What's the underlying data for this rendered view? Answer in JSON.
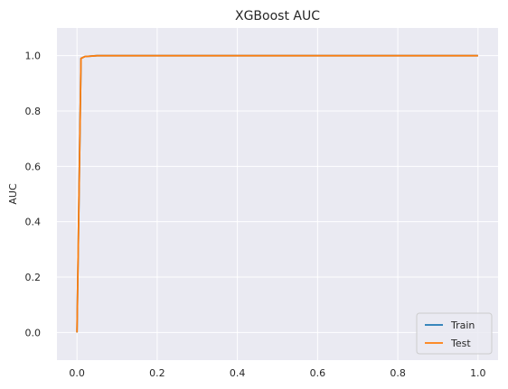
{
  "chart_data": {
    "type": "line",
    "title": "XGBoost AUC",
    "xlabel": "",
    "ylabel": "AUC",
    "xlim": [
      -0.05,
      1.05
    ],
    "ylim": [
      -0.1,
      1.1
    ],
    "xticks": [
      0.0,
      0.2,
      0.4,
      0.6,
      0.8,
      1.0
    ],
    "xtick_labels": [
      "0.0",
      "0.2",
      "0.4",
      "0.6",
      "0.8",
      "1.0"
    ],
    "yticks": [
      0.0,
      0.2,
      0.4,
      0.6,
      0.8,
      1.0
    ],
    "ytick_labels": [
      "0.0",
      "0.2",
      "0.4",
      "0.6",
      "0.8",
      "1.0"
    ],
    "grid": true,
    "legend_position": "bottom-right",
    "background": "#eaeaf2",
    "series": [
      {
        "name": "Train",
        "color": "#1f77b4",
        "x": [
          0.0,
          0.01,
          0.02,
          0.05,
          1.0
        ],
        "y": [
          0.0,
          0.99,
          0.997,
          1.0,
          1.0
        ]
      },
      {
        "name": "Test",
        "color": "#ff7f0e",
        "x": [
          0.0,
          0.01,
          0.02,
          0.05,
          1.0
        ],
        "y": [
          0.0,
          0.99,
          0.997,
          1.0,
          1.0
        ]
      }
    ]
  }
}
